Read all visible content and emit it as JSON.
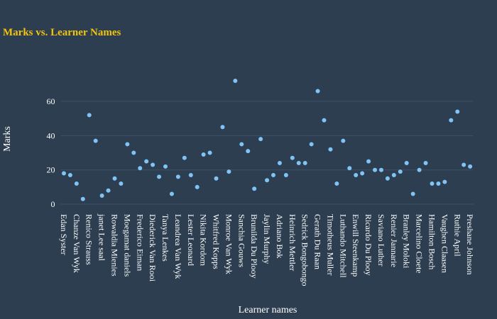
{
  "chart_data": {
    "type": "scatter",
    "title": "Marks vs. Learner Names",
    "x_label": "Learner names",
    "y_label": "Marks",
    "categories": [
      "Edan Syster",
      null,
      "Chanze Van Wyk",
      null,
      "Renico Strauss",
      null,
      "janet Lee saal",
      null,
      "Rowaldia Mienies",
      null,
      "Moegamat daniels",
      null,
      "Frederico Eiman",
      null,
      "Diederick Van Rooi",
      null,
      "Tanya Lenkes",
      null,
      "Leandrea Van Wyk",
      null,
      "Lester Leonard",
      null,
      "Nikita Kordom",
      null,
      "Whitfred Kopps",
      null,
      "Monroe Van Wyk",
      null,
      "Sanchia Gouws",
      null,
      "Brunilda Du Plooy",
      null,
      "Jaylin Murphy",
      null,
      "Adriano Bok",
      null,
      "Heinrich Mettler",
      null,
      "Sedrick Bongobongo",
      null,
      "Gerath Du Raan",
      null,
      "Timotheus Muller",
      null,
      "Luthando Mitchell",
      null,
      "Enwill Steenkamp",
      null,
      "Ricardo Du Plooy",
      null,
      "Saviano Luther",
      null,
      "Renier Jannarie",
      null,
      "Branley Moloki",
      null,
      "Marcelino Cloete",
      null,
      "Hamilton Bosch",
      null,
      "Vaughen Claasen",
      null,
      "Ruthie April",
      null,
      "Preshane Johnson"
    ],
    "values": [
      18,
      17,
      12,
      3,
      52,
      37,
      5,
      8,
      15,
      12,
      35,
      30,
      21,
      25,
      23,
      16,
      22,
      6,
      16,
      27,
      17,
      10,
      29,
      30,
      15,
      45,
      19,
      72,
      35,
      31,
      9,
      38,
      14,
      17,
      24,
      17,
      27,
      24,
      24,
      35,
      66,
      49,
      32,
      12,
      37,
      21,
      17,
      18,
      25,
      20,
      20,
      15,
      17,
      19,
      24,
      6,
      20,
      24,
      12,
      12,
      13,
      49,
      54,
      23,
      22
    ],
    "color": "#7fc4f5",
    "ylim": [
      -3.5,
      78
    ],
    "yticks": [
      0,
      20,
      40,
      60
    ],
    "grid": true
  }
}
